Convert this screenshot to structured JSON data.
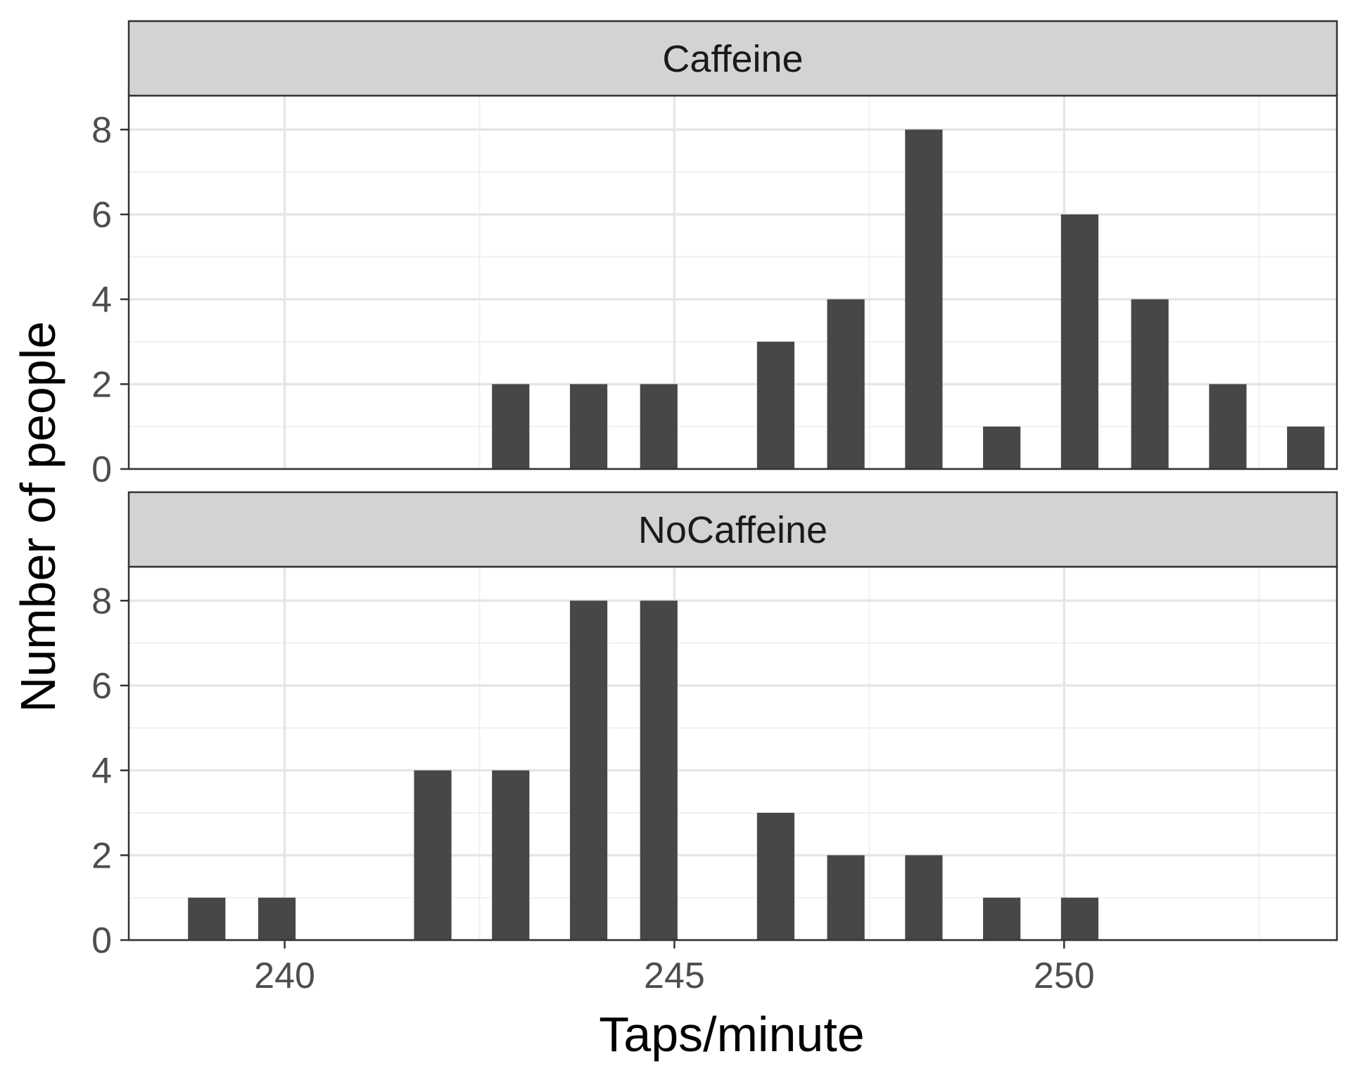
{
  "chart_data": {
    "type": "bar",
    "xlabel": "Taps/minute",
    "ylabel": "Number of people",
    "xlim": [
      238,
      253.5
    ],
    "ylim": [
      0,
      8.8
    ],
    "x_ticks": [
      240,
      245,
      250
    ],
    "y_ticks": [
      0,
      2,
      4,
      6,
      8
    ],
    "bar_width": 0.48,
    "grid": true,
    "bar_color": "#474747",
    "panels": [
      {
        "name": "Caffeine",
        "bars": [
          {
            "x": 242.9,
            "value": 2
          },
          {
            "x": 243.9,
            "value": 2
          },
          {
            "x": 244.8,
            "value": 2
          },
          {
            "x": 246.3,
            "value": 3
          },
          {
            "x": 247.2,
            "value": 4
          },
          {
            "x": 248.2,
            "value": 8
          },
          {
            "x": 249.2,
            "value": 1
          },
          {
            "x": 250.2,
            "value": 6
          },
          {
            "x": 251.1,
            "value": 4
          },
          {
            "x": 252.1,
            "value": 2
          },
          {
            "x": 253.1,
            "value": 1
          }
        ]
      },
      {
        "name": "NoCaffeine",
        "bars": [
          {
            "x": 239.0,
            "value": 1
          },
          {
            "x": 239.9,
            "value": 1
          },
          {
            "x": 241.9,
            "value": 4
          },
          {
            "x": 242.9,
            "value": 4
          },
          {
            "x": 243.9,
            "value": 8
          },
          {
            "x": 244.8,
            "value": 8
          },
          {
            "x": 246.3,
            "value": 3
          },
          {
            "x": 247.2,
            "value": 2
          },
          {
            "x": 248.2,
            "value": 2
          },
          {
            "x": 249.2,
            "value": 1
          },
          {
            "x": 250.2,
            "value": 1
          }
        ]
      }
    ]
  }
}
